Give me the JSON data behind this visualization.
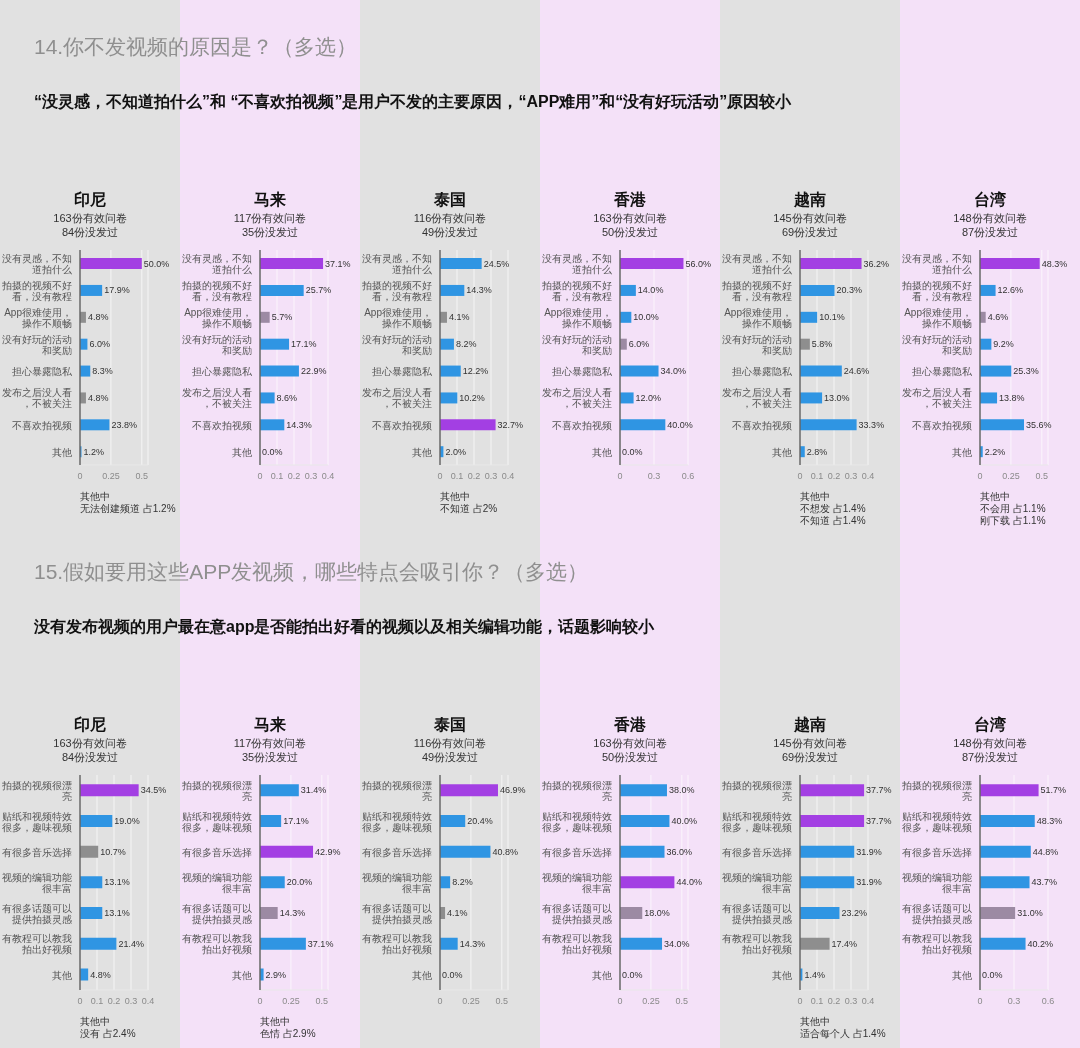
{
  "chart_data": [
    {
      "type": "bar",
      "orientation": "horizontal",
      "title": "印尼",
      "subtitle": "163份有效问卷\n84份没发过",
      "categories": [
        "没有灵感，不知道拍什么",
        "拍摄的视频不好看，没有教程",
        "App很难使用，操作不顺畅",
        "没有好玩的活动和奖励",
        "担心暴露隐私",
        "发布之后没人看，不被关注",
        "不喜欢拍视频",
        "其他"
      ],
      "values": [
        0.5,
        0.179,
        0.048,
        0.06,
        0.083,
        0.048,
        0.238,
        0.012
      ],
      "value_labels": [
        "50.0%",
        "17.9%",
        "4.8%",
        "6.0%",
        "8.3%",
        "4.8%",
        "23.8%",
        "1.2%"
      ],
      "colors": [
        "#a33fe3",
        "#2f95e3",
        "#8e8e8e",
        "#2f95e3",
        "#2f95e3",
        "#8e8e8e",
        "#2f95e3",
        "#2f95e3"
      ],
      "xlim": [
        0,
        0.55
      ],
      "xticks": [
        0,
        0.25,
        0.5
      ],
      "grid": "x",
      "annotations": [
        "14.你不发视频的原因是？（多选）",
        "“没灵感，不知道拍什么”和 “不喜欢拍视频”是用户不发的主要原因，“APP难用”和“没有好玩活动”原因较小",
        "其他中",
        "无法创建频道 占1.2%"
      ]
    },
    {
      "type": "bar",
      "orientation": "horizontal",
      "title": "马来",
      "subtitle": "117份有效问卷\n35份没发过",
      "categories": [
        "没有灵感，不知道拍什么",
        "拍摄的视频不好看，没有教程",
        "App很难使用，操作不顺畅",
        "没有好玩的活动和奖励",
        "担心暴露隐私",
        "发布之后没人看，不被关注",
        "不喜欢拍视频",
        "其他"
      ],
      "values": [
        0.371,
        0.257,
        0.057,
        0.171,
        0.229,
        0.086,
        0.143,
        0
      ],
      "value_labels": [
        "37.1%",
        "25.7%",
        "5.7%",
        "17.1%",
        "22.9%",
        "8.6%",
        "14.3%",
        "0.0%"
      ],
      "colors": [
        "#a33fe3",
        "#2f95e3",
        "#9c8aa3",
        "#2f95e3",
        "#2f95e3",
        "#2f95e3",
        "#2f95e3",
        "#2f95e3"
      ],
      "xlim": [
        0,
        0.4
      ],
      "xticks": [
        0,
        0.1,
        0.2,
        0.3,
        0.4
      ],
      "grid": "x"
    },
    {
      "type": "bar",
      "orientation": "horizontal",
      "title": "泰国",
      "subtitle": "116份有效问卷\n49份没发过",
      "categories": [
        "没有灵感，不知道拍什么",
        "拍摄的视频不好看，没有教程",
        "App很难使用，操作不顺畅",
        "没有好玩的活动和奖励",
        "担心暴露隐私",
        "发布之后没人看，不被关注",
        "不喜欢拍视频",
        "其他"
      ],
      "values": [
        0.245,
        0.143,
        0.041,
        0.082,
        0.122,
        0.102,
        0.327,
        0.02
      ],
      "value_labels": [
        "24.5%",
        "14.3%",
        "4.1%",
        "8.2%",
        "12.2%",
        "10.2%",
        "32.7%",
        "2.0%"
      ],
      "colors": [
        "#2f95e3",
        "#2f95e3",
        "#8e8e8e",
        "#2f95e3",
        "#2f95e3",
        "#2f95e3",
        "#a33fe3",
        "#2f95e3"
      ],
      "xlim": [
        0,
        0.4
      ],
      "xticks": [
        0,
        0.1,
        0.2,
        0.3,
        0.4
      ],
      "grid": "x",
      "annotations": [
        "其他中",
        "不知道 占2%"
      ]
    },
    {
      "type": "bar",
      "orientation": "horizontal",
      "title": "香港",
      "subtitle": "163份有效问卷\n50份没发过",
      "categories": [
        "没有灵感，不知道拍什么",
        "拍摄的视频不好看，没有教程",
        "App很难使用，操作不顺畅",
        "没有好玩的活动和奖励",
        "担心暴露隐私",
        "发布之后没人看，不被关注",
        "不喜欢拍视频",
        "其他"
      ],
      "values": [
        0.56,
        0.14,
        0.1,
        0.06,
        0.34,
        0.12,
        0.4,
        0
      ],
      "value_labels": [
        "56.0%",
        "14.0%",
        "10.0%",
        "6.0%",
        "34.0%",
        "12.0%",
        "40.0%",
        "0.0%"
      ],
      "colors": [
        "#a33fe3",
        "#2f95e3",
        "#2f95e3",
        "#9c8aa3",
        "#2f95e3",
        "#2f95e3",
        "#2f95e3",
        "#2f95e3"
      ],
      "xlim": [
        0,
        0.6
      ],
      "xticks": [
        0,
        0.3,
        0.6
      ],
      "grid": "x"
    },
    {
      "type": "bar",
      "orientation": "horizontal",
      "title": "越南",
      "subtitle": "145份有效问卷\n69份没发过",
      "categories": [
        "没有灵感，不知道拍什么",
        "拍摄的视频不好看，没有教程",
        "App很难使用，操作不顺畅",
        "没有好玩的活动和奖励",
        "担心暴露隐私",
        "发布之后没人看，不被关注",
        "不喜欢拍视频",
        "其他"
      ],
      "values": [
        0.362,
        0.203,
        0.101,
        0.058,
        0.246,
        0.13,
        0.333,
        0.028
      ],
      "value_labels": [
        "36.2%",
        "20.3%",
        "10.1%",
        "5.8%",
        "24.6%",
        "13.0%",
        "33.3%",
        "2.8%"
      ],
      "colors": [
        "#a33fe3",
        "#2f95e3",
        "#2f95e3",
        "#8e8e8e",
        "#2f95e3",
        "#2f95e3",
        "#2f95e3",
        "#2f95e3"
      ],
      "xlim": [
        0,
        0.4
      ],
      "xticks": [
        0,
        0.1,
        0.2,
        0.3,
        0.4
      ],
      "grid": "x",
      "annotations": [
        "其他中",
        "不想发 占1.4%",
        "不知道 占1.4%"
      ]
    },
    {
      "type": "bar",
      "orientation": "horizontal",
      "title": "台湾",
      "subtitle": "148份有效问卷\n87份没发过",
      "categories": [
        "没有灵感，不知道拍什么",
        "拍摄的视频不好看，没有教程",
        "App很难使用，操作不顺畅",
        "没有好玩的活动和奖励",
        "担心暴露隐私",
        "发布之后没人看，不被关注",
        "不喜欢拍视频",
        "其他"
      ],
      "values": [
        0.483,
        0.126,
        0.046,
        0.092,
        0.253,
        0.138,
        0.356,
        0.022
      ],
      "value_labels": [
        "48.3%",
        "12.6%",
        "4.6%",
        "9.2%",
        "25.3%",
        "13.8%",
        "35.6%",
        "2.2%"
      ],
      "colors": [
        "#a33fe3",
        "#2f95e3",
        "#9c8aa3",
        "#2f95e3",
        "#2f95e3",
        "#2f95e3",
        "#2f95e3",
        "#2f95e3"
      ],
      "xlim": [
        0,
        0.55
      ],
      "xticks": [
        0,
        0.25,
        0.5
      ],
      "grid": "x",
      "annotations": [
        "其他中",
        "不会用 占1.1%",
        "刚下载 占1.1%"
      ]
    },
    {
      "type": "bar",
      "orientation": "horizontal",
      "title": "印尼",
      "subtitle": "163份有效问卷\n84份没发过",
      "categories": [
        "拍摄的视频很漂亮",
        "贴纸和视频特效很多，趣味视频",
        "有很多音乐选择",
        "视频的编辑功能很丰富",
        "有很多话题可以提供拍摄灵感",
        "有教程可以教我拍出好视频",
        "其他"
      ],
      "values": [
        0.345,
        0.19,
        0.107,
        0.131,
        0.131,
        0.214,
        0.048
      ],
      "value_labels": [
        "34.5%",
        "19.0%",
        "10.7%",
        "13.1%",
        "13.1%",
        "21.4%",
        "4.8%"
      ],
      "colors": [
        "#a33fe3",
        "#2f95e3",
        "#8e8e8e",
        "#2f95e3",
        "#2f95e3",
        "#2f95e3",
        "#2f95e3"
      ],
      "xlim": [
        0,
        0.4
      ],
      "xticks": [
        0,
        0.1,
        0.2,
        0.3,
        0.4
      ],
      "grid": "x",
      "annotations": [
        "15.假如要用这些APP发视频，哪些特点会吸引你？（多选）",
        "没有发布视频的用户最在意app是否能拍出好看的视频以及相关编辑功能，话题影响较小",
        "其他中",
        "没有 占2.4%"
      ]
    },
    {
      "type": "bar",
      "orientation": "horizontal",
      "title": "马来",
      "subtitle": "117份有效问卷\n35份没发过",
      "categories": [
        "拍摄的视频很漂亮",
        "贴纸和视频特效很多，趣味视频",
        "有很多音乐选择",
        "视频的编辑功能很丰富",
        "有很多话题可以提供拍摄灵感",
        "有教程可以教我拍出好视频",
        "其他"
      ],
      "values": [
        0.314,
        0.171,
        0.429,
        0.2,
        0.143,
        0.371,
        0.029
      ],
      "value_labels": [
        "31.4%",
        "17.1%",
        "42.9%",
        "20.0%",
        "14.3%",
        "37.1%",
        "2.9%"
      ],
      "colors": [
        "#2f95e3",
        "#2f95e3",
        "#a33fe3",
        "#2f95e3",
        "#9c8aa3",
        "#2f95e3",
        "#2f95e3"
      ],
      "xlim": [
        0,
        0.55
      ],
      "xticks": [
        0,
        0.25,
        0.5
      ],
      "grid": "x",
      "annotations": [
        "其他中",
        "色情 占2.9%"
      ]
    },
    {
      "type": "bar",
      "orientation": "horizontal",
      "title": "泰国",
      "subtitle": "116份有效问卷\n49份没发过",
      "categories": [
        "拍摄的视频很漂亮",
        "贴纸和视频特效很多，趣味视频",
        "有很多音乐选择",
        "视频的编辑功能很丰富",
        "有很多话题可以提供拍摄灵感",
        "有教程可以教我拍出好视频",
        "其他"
      ],
      "values": [
        0.469,
        0.204,
        0.408,
        0.082,
        0.041,
        0.143,
        0
      ],
      "value_labels": [
        "46.9%",
        "20.4%",
        "40.8%",
        "8.2%",
        "4.1%",
        "14.3%",
        "0.0%"
      ],
      "colors": [
        "#a33fe3",
        "#2f95e3",
        "#2f95e3",
        "#2f95e3",
        "#8e8e8e",
        "#2f95e3",
        "#2f95e3"
      ],
      "xlim": [
        0,
        0.55
      ],
      "xticks": [
        0,
        0.25,
        0.5
      ],
      "grid": "x"
    },
    {
      "type": "bar",
      "orientation": "horizontal",
      "title": "香港",
      "subtitle": "163份有效问卷\n50份没发过",
      "categories": [
        "拍摄的视频很漂亮",
        "贴纸和视频特效很多，趣味视频",
        "有很多音乐选择",
        "视频的编辑功能很丰富",
        "有很多话题可以提供拍摄灵感",
        "有教程可以教我拍出好视频",
        "其他"
      ],
      "values": [
        0.38,
        0.4,
        0.36,
        0.44,
        0.18,
        0.34,
        0
      ],
      "value_labels": [
        "38.0%",
        "40.0%",
        "36.0%",
        "44.0%",
        "18.0%",
        "34.0%",
        "0.0%"
      ],
      "colors": [
        "#2f95e3",
        "#2f95e3",
        "#2f95e3",
        "#a33fe3",
        "#9c8aa3",
        "#2f95e3",
        "#2f95e3"
      ],
      "xlim": [
        0,
        0.55
      ],
      "xticks": [
        0,
        0.25,
        0.5
      ],
      "grid": "x"
    },
    {
      "type": "bar",
      "orientation": "horizontal",
      "title": "越南",
      "subtitle": "145份有效问卷\n69份没发过",
      "categories": [
        "拍摄的视频很漂亮",
        "贴纸和视频特效很多，趣味视频",
        "有很多音乐选择",
        "视频的编辑功能很丰富",
        "有很多话题可以提供拍摄灵感",
        "有教程可以教我拍出好视频",
        "其他"
      ],
      "values": [
        0.377,
        0.377,
        0.319,
        0.319,
        0.232,
        0.174,
        0.014
      ],
      "value_labels": [
        "37.7%",
        "37.7%",
        "31.9%",
        "31.9%",
        "23.2%",
        "17.4%",
        "1.4%"
      ],
      "colors": [
        "#a33fe3",
        "#a33fe3",
        "#2f95e3",
        "#2f95e3",
        "#2f95e3",
        "#8e8e8e",
        "#2f95e3"
      ],
      "xlim": [
        0,
        0.4
      ],
      "xticks": [
        0,
        0.1,
        0.2,
        0.3,
        0.4
      ],
      "grid": "x",
      "annotations": [
        "其他中",
        "适合每个人 占1.4%"
      ]
    },
    {
      "type": "bar",
      "orientation": "horizontal",
      "title": "台湾",
      "subtitle": "148份有效问卷\n87份没发过",
      "categories": [
        "拍摄的视频很漂亮",
        "贴纸和视频特效很多，趣味视频",
        "有很多音乐选择",
        "视频的编辑功能很丰富",
        "有很多话题可以提供拍摄灵感",
        "有教程可以教我拍出好视频",
        "其他"
      ],
      "values": [
        0.517,
        0.483,
        0.448,
        0.437,
        0.31,
        0.402,
        0
      ],
      "value_labels": [
        "51.7%",
        "48.3%",
        "44.8%",
        "43.7%",
        "31.0%",
        "40.2%",
        "0.0%"
      ],
      "colors": [
        "#a33fe3",
        "#2f95e3",
        "#2f95e3",
        "#2f95e3",
        "#9c8aa3",
        "#2f95e3",
        "#2f95e3"
      ],
      "xlim": [
        0,
        0.6
      ],
      "xticks": [
        0,
        0.3,
        0.6
      ],
      "grid": "x"
    }
  ]
}
